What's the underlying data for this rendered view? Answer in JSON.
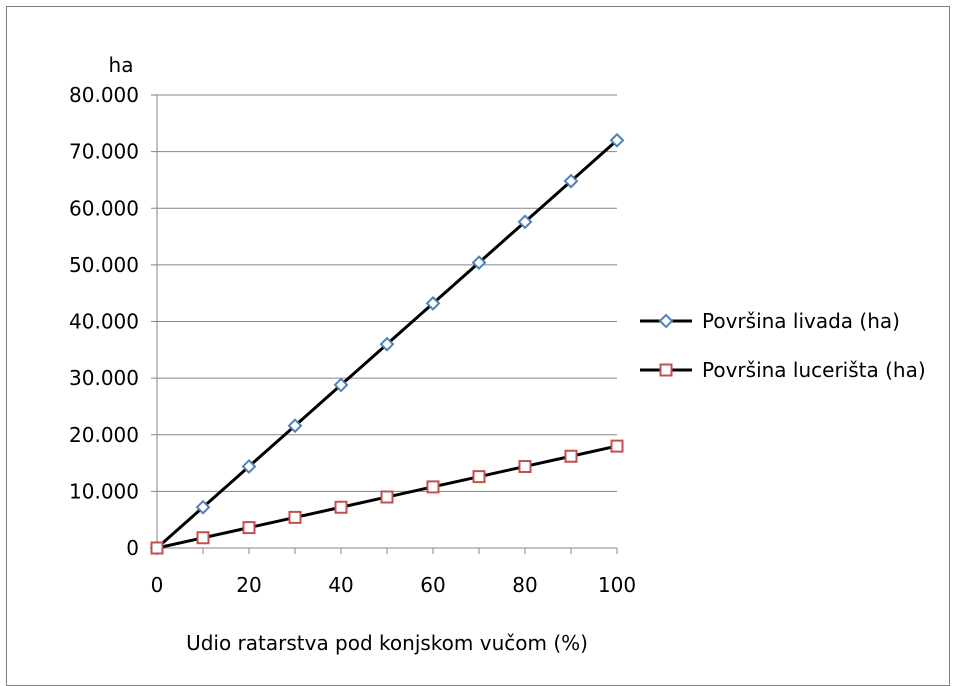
{
  "chart_data": {
    "type": "line",
    "ylabel": "ha",
    "xlabel": "Udio ratarstva pod konjskom vučom (%)",
    "x": [
      0,
      10,
      20,
      30,
      40,
      50,
      60,
      70,
      80,
      90,
      100
    ],
    "xlim": [
      0,
      100
    ],
    "ylim": [
      0,
      80000
    ],
    "x_ticks": [
      "0",
      "20",
      "40",
      "60",
      "80",
      "100"
    ],
    "y_ticks": [
      "0",
      "10.000",
      "20.000",
      "30.000",
      "40.000",
      "50.000",
      "60.000",
      "70.000",
      "80.000"
    ],
    "grid": "horizontal",
    "legend_position": "right",
    "series": [
      {
        "name": "Površina livada (ha)",
        "marker": "diamond",
        "marker_color": "#4f81bd",
        "line_color": "#000000",
        "values": [
          0,
          7200,
          14400,
          21600,
          28800,
          36000,
          43200,
          50400,
          57600,
          64800,
          72000
        ]
      },
      {
        "name": "Površina lucerišta (ha)",
        "marker": "square",
        "marker_color": "#c0504d",
        "line_color": "#000000",
        "values": [
          0,
          1800,
          3600,
          5400,
          7200,
          9000,
          10800,
          12600,
          14400,
          16200,
          18000
        ]
      }
    ]
  }
}
